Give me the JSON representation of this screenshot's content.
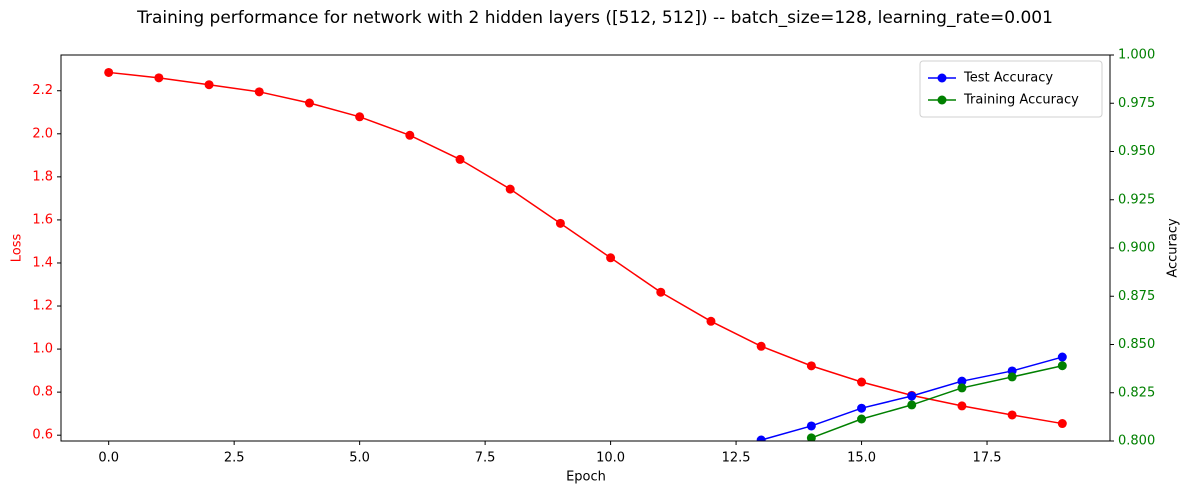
{
  "chart_data": {
    "type": "line",
    "title": "Training performance for network with 2 hidden layers ([512, 512]) -- batch_size=128, learning_rate=0.001",
    "xlabel": "Epoch",
    "ylabel": "Loss",
    "y2label": "Accuracy",
    "x": [
      0,
      1,
      2,
      3,
      4,
      5,
      6,
      7,
      8,
      9,
      10,
      11,
      12,
      13,
      14,
      15,
      16,
      17,
      18,
      19
    ],
    "series": [
      {
        "name": "Loss",
        "color": "#ff0000",
        "axis": "y",
        "in_legend": false,
        "values": [
          2.285,
          2.26,
          2.228,
          2.195,
          2.143,
          2.079,
          1.993,
          1.881,
          1.743,
          1.584,
          1.424,
          1.264,
          1.129,
          1.013,
          0.922,
          0.847,
          0.785,
          0.736,
          0.694,
          0.654
        ]
      },
      {
        "name": "Test Accuracy",
        "color": "#0000ff",
        "axis": "y2",
        "in_legend": true,
        "values": [
          null,
          null,
          null,
          null,
          null,
          null,
          null,
          null,
          null,
          null,
          null,
          null,
          null,
          0.8005,
          0.8078,
          0.817,
          0.8233,
          0.831,
          0.8363,
          0.8435
        ]
      },
      {
        "name": "Training Accuracy",
        "color": "#008000",
        "axis": "y2",
        "in_legend": true,
        "values": [
          null,
          null,
          null,
          null,
          null,
          null,
          null,
          null,
          null,
          null,
          null,
          null,
          null,
          null,
          0.8016,
          0.8114,
          0.8187,
          0.8275,
          0.8332,
          0.839
        ]
      }
    ],
    "xlim": [
      -0.95,
      19.95
    ],
    "xticks": [
      {
        "value": 0,
        "label": "0.0"
      },
      {
        "value": 2.5,
        "label": "2.5"
      },
      {
        "value": 5,
        "label": "5.0"
      },
      {
        "value": 7.5,
        "label": "7.5"
      },
      {
        "value": 10,
        "label": "10.0"
      },
      {
        "value": 12.5,
        "label": "12.5"
      },
      {
        "value": 15,
        "label": "15.0"
      },
      {
        "value": 17.5,
        "label": "17.5"
      }
    ],
    "ylim": [
      0.573,
      2.366
    ],
    "yticks": [
      0.6,
      0.8,
      {
        "value": 1,
        "label": "1.0"
      },
      1.2,
      1.4,
      1.6,
      1.8,
      {
        "value": 2,
        "label": "2.0"
      },
      2.2
    ],
    "y_color": "#ff0000",
    "y2lim": [
      0.8,
      1.0
    ],
    "y2ticks": [
      {
        "value": 0.8,
        "label": "0.800"
      },
      {
        "value": 0.825,
        "label": "0.825"
      },
      {
        "value": 0.85,
        "label": "0.850"
      },
      {
        "value": 0.875,
        "label": "0.875"
      },
      {
        "value": 0.9,
        "label": "0.900"
      },
      {
        "value": 0.925,
        "label": "0.925"
      },
      {
        "value": 0.95,
        "label": "0.950"
      },
      {
        "value": 0.975,
        "label": "0.975"
      },
      {
        "value": 1,
        "label": "1.000"
      }
    ],
    "y2_color": "#008000",
    "legend": "upper right"
  }
}
